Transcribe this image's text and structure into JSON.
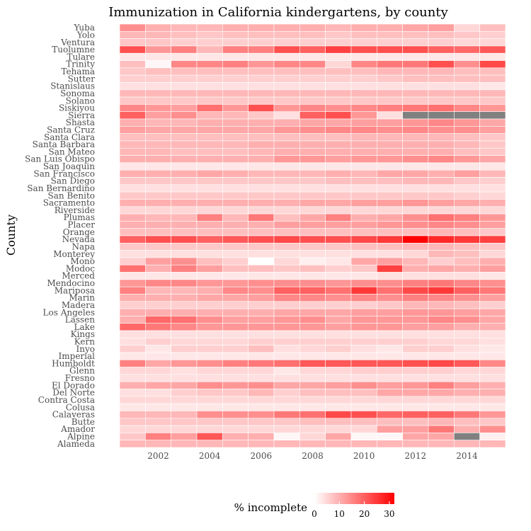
{
  "chart_data": {
    "type": "heatmap",
    "title": "Immunization in California kindergartens, by county",
    "xlabel": "",
    "ylabel": "County",
    "legend_title": "% incomplete",
    "legend_ticks": [
      0,
      10,
      20,
      30
    ],
    "value_range": [
      0,
      32
    ],
    "colors": {
      "low": "#ffffff",
      "high": "#ff0000",
      "missing": "#808080",
      "grid": "#ffffff"
    },
    "x": [
      2001,
      2002,
      2003,
      2004,
      2005,
      2006,
      2007,
      2008,
      2009,
      2010,
      2011,
      2012,
      2013,
      2014,
      2015
    ],
    "x_ticks": [
      2002,
      2004,
      2006,
      2008,
      2010,
      2012,
      2014
    ],
    "counties": [
      "Yuba",
      "Yolo",
      "Ventura",
      "Tuolumne",
      "Tulare",
      "Trinity",
      "Tehama",
      "Sutter",
      "Stanislaus",
      "Sonoma",
      "Solano",
      "Siskiyou",
      "Sierra",
      "Shasta",
      "Santa Cruz",
      "Santa Clara",
      "Santa Barbara",
      "San Mateo",
      "San Luis Obispo",
      "San Joaquin",
      "San Francisco",
      "San Diego",
      "San Bernardino",
      "San Benito",
      "Sacramento",
      "Riverside",
      "Plumas",
      "Placer",
      "Orange",
      "Nevada",
      "Napa",
      "Monterey",
      "Mono",
      "Modoc",
      "Merced",
      "Mendocino",
      "Mariposa",
      "Marin",
      "Madera",
      "Los Angeles",
      "Lassen",
      "Lake",
      "Kings",
      "Kern",
      "Inyo",
      "Imperial",
      "Humboldt",
      "Glenn",
      "Fresno",
      "El Dorado",
      "Del Norte",
      "Contra Costa",
      "Colusa",
      "Calaveras",
      "Butte",
      "Amador",
      "Alpine",
      "Alameda"
    ],
    "values": [
      [
        14,
        10,
        9,
        9,
        10,
        10,
        10,
        10,
        9,
        10,
        10,
        11,
        12,
        5,
        8
      ],
      [
        9,
        9,
        8,
        7,
        8,
        8,
        8,
        8,
        7,
        8,
        8,
        8,
        8,
        7,
        6
      ],
      [
        7,
        7,
        6,
        6,
        6,
        6,
        6,
        6,
        6,
        6,
        6,
        6,
        6,
        5,
        5
      ],
      [
        22,
        13,
        16,
        9,
        16,
        16,
        22,
        20,
        24,
        22,
        22,
        22,
        20,
        19,
        21
      ],
      [
        3,
        3,
        3,
        3,
        3,
        3,
        3,
        3,
        3,
        3,
        3,
        3,
        3,
        3,
        3
      ],
      [
        8,
        1,
        15,
        15,
        16,
        13,
        15,
        15,
        5,
        15,
        17,
        17,
        22,
        14,
        23
      ],
      [
        7,
        8,
        8,
        8,
        8,
        8,
        8,
        8,
        8,
        8,
        9,
        9,
        9,
        8,
        8
      ],
      [
        6,
        6,
        6,
        6,
        6,
        6,
        6,
        6,
        6,
        6,
        7,
        8,
        8,
        8,
        8
      ],
      [
        4,
        4,
        4,
        4,
        4,
        4,
        4,
        4,
        4,
        4,
        4,
        4,
        4,
        4,
        3
      ],
      [
        9,
        9,
        9,
        9,
        9,
        9,
        9,
        9,
        9,
        9,
        9,
        9,
        9,
        9,
        9
      ],
      [
        7,
        7,
        7,
        7,
        7,
        7,
        7,
        7,
        7,
        7,
        7,
        7,
        7,
        7,
        7
      ],
      [
        15,
        13,
        12,
        18,
        13,
        22,
        13,
        15,
        14,
        15,
        16,
        17,
        18,
        15,
        13
      ],
      [
        20,
        12,
        14,
        9,
        9,
        7,
        4,
        20,
        22,
        13,
        4,
        null,
        null,
        null,
        null
      ],
      [
        10,
        9,
        9,
        10,
        10,
        10,
        10,
        11,
        11,
        12,
        12,
        13,
        15,
        13,
        11
      ],
      [
        12,
        11,
        11,
        11,
        11,
        11,
        13,
        14,
        15,
        15,
        14,
        15,
        14,
        14,
        12
      ],
      [
        8,
        8,
        8,
        8,
        8,
        8,
        8,
        8,
        8,
        9,
        9,
        9,
        9,
        8,
        7
      ],
      [
        9,
        9,
        9,
        9,
        9,
        10,
        10,
        10,
        10,
        10,
        10,
        10,
        10,
        9,
        7
      ],
      [
        9,
        9,
        8,
        8,
        8,
        9,
        10,
        10,
        10,
        10,
        10,
        10,
        10,
        8,
        7
      ],
      [
        10,
        10,
        10,
        10,
        10,
        10,
        13,
        13,
        12,
        13,
        13,
        14,
        15,
        13,
        11
      ],
      [
        3,
        3,
        3,
        3,
        3,
        3,
        3,
        3,
        3,
        3,
        3,
        3,
        3,
        3,
        3
      ],
      [
        10,
        10,
        10,
        11,
        10,
        9,
        9,
        9,
        10,
        9,
        11,
        11,
        10,
        12,
        9
      ],
      [
        7,
        7,
        7,
        7,
        7,
        7,
        7,
        7,
        8,
        8,
        8,
        9,
        9,
        7,
        6
      ],
      [
        4,
        4,
        4,
        4,
        4,
        4,
        4,
        4,
        4,
        4,
        4,
        4,
        4,
        4,
        4
      ],
      [
        7,
        7,
        7,
        7,
        7,
        7,
        7,
        7,
        7,
        7,
        7,
        7,
        7,
        6,
        5
      ],
      [
        10,
        10,
        10,
        10,
        10,
        10,
        10,
        11,
        11,
        12,
        12,
        13,
        12,
        11,
        10
      ],
      [
        5,
        5,
        5,
        5,
        5,
        5,
        5,
        5,
        5,
        5,
        5,
        5,
        5,
        5,
        5
      ],
      [
        10,
        9,
        9,
        16,
        9,
        17,
        8,
        11,
        16,
        10,
        11,
        14,
        18,
        16,
        13
      ],
      [
        10,
        10,
        10,
        10,
        10,
        10,
        12,
        12,
        12,
        12,
        13,
        14,
        15,
        14,
        12
      ],
      [
        8,
        8,
        8,
        8,
        8,
        8,
        8,
        8,
        8,
        8,
        8,
        8,
        9,
        8,
        7
      ],
      [
        20,
        22,
        22,
        20,
        21,
        22,
        23,
        22,
        22,
        23,
        25,
        32,
        27,
        25,
        24
      ],
      [
        7,
        7,
        7,
        7,
        7,
        7,
        7,
        7,
        7,
        8,
        8,
        9,
        9,
        8,
        7
      ],
      [
        4,
        4,
        4,
        4,
        4,
        4,
        4,
        4,
        4,
        4,
        4,
        5,
        9,
        8,
        5
      ],
      [
        6,
        12,
        14,
        8,
        6,
        0,
        5,
        2,
        3,
        11,
        12,
        9,
        6,
        8,
        10
      ],
      [
        18,
        10,
        16,
        12,
        8,
        8,
        7,
        8,
        6,
        7,
        24,
        10,
        11,
        10,
        12
      ],
      [
        3,
        3,
        3,
        3,
        3,
        3,
        3,
        3,
        3,
        3,
        4,
        4,
        4,
        4,
        3
      ],
      [
        13,
        15,
        15,
        13,
        13,
        14,
        14,
        14,
        13,
        14,
        14,
        16,
        17,
        15,
        14
      ],
      [
        16,
        9,
        9,
        10,
        15,
        14,
        20,
        20,
        18,
        25,
        18,
        23,
        25,
        20,
        17
      ],
      [
        10,
        10,
        10,
        11,
        11,
        12,
        15,
        15,
        14,
        15,
        14,
        16,
        15,
        14,
        12
      ],
      [
        6,
        6,
        6,
        6,
        6,
        6,
        6,
        6,
        6,
        6,
        7,
        9,
        9,
        8,
        6
      ],
      [
        10,
        10,
        10,
        10,
        10,
        10,
        11,
        11,
        11,
        12,
        12,
        13,
        13,
        12,
        11
      ],
      [
        10,
        19,
        18,
        14,
        12,
        12,
        13,
        14,
        11,
        13,
        13,
        13,
        15,
        14,
        11
      ],
      [
        19,
        17,
        15,
        13,
        13,
        13,
        13,
        13,
        12,
        13,
        13,
        12,
        12,
        10,
        10
      ],
      [
        4,
        4,
        4,
        4,
        4,
        4,
        4,
        4,
        4,
        4,
        4,
        4,
        4,
        4,
        4
      ],
      [
        4,
        6,
        5,
        5,
        5,
        6,
        6,
        6,
        6,
        6,
        6,
        6,
        5,
        5,
        4
      ],
      [
        6,
        3,
        6,
        6,
        6,
        8,
        4,
        5,
        6,
        4,
        3,
        6,
        6,
        4,
        3
      ],
      [
        3,
        3,
        3,
        3,
        3,
        3,
        3,
        3,
        3,
        3,
        3,
        3,
        3,
        3,
        3
      ],
      [
        16,
        11,
        13,
        14,
        16,
        17,
        18,
        21,
        21,
        21,
        21,
        22,
        23,
        21,
        15
      ],
      [
        5,
        5,
        4,
        5,
        5,
        5,
        3,
        5,
        5,
        6,
        6,
        6,
        6,
        5,
        5
      ],
      [
        4,
        4,
        4,
        4,
        4,
        4,
        4,
        4,
        4,
        4,
        4,
        4,
        4,
        4,
        4
      ],
      [
        10,
        11,
        11,
        14,
        13,
        14,
        11,
        11,
        12,
        14,
        12,
        13,
        16,
        12,
        10
      ],
      [
        4,
        4,
        6,
        7,
        7,
        9,
        6,
        8,
        8,
        8,
        11,
        11,
        11,
        10,
        10
      ],
      [
        5,
        5,
        5,
        5,
        5,
        5,
        5,
        5,
        5,
        5,
        5,
        5,
        5,
        5,
        5
      ],
      [
        3,
        3,
        3,
        3,
        3,
        3,
        3,
        3,
        3,
        3,
        3,
        3,
        3,
        3,
        3
      ],
      [
        9,
        9,
        9,
        14,
        14,
        14,
        17,
        18,
        23,
        22,
        19,
        20,
        20,
        17,
        13
      ],
      [
        7,
        7,
        7,
        7,
        7,
        7,
        7,
        8,
        8,
        8,
        8,
        8,
        9,
        8,
        7
      ],
      [
        5,
        5,
        5,
        5,
        5,
        5,
        5,
        5,
        5,
        5,
        12,
        12,
        17,
        10,
        14
      ],
      [
        7,
        16,
        12,
        21,
        10,
        10,
        1,
        5,
        11,
        1,
        1,
        11,
        11,
        null,
        2
      ],
      [
        9,
        9,
        9,
        9,
        9,
        9,
        9,
        9,
        9,
        9,
        9,
        9,
        9,
        9,
        9
      ]
    ]
  }
}
